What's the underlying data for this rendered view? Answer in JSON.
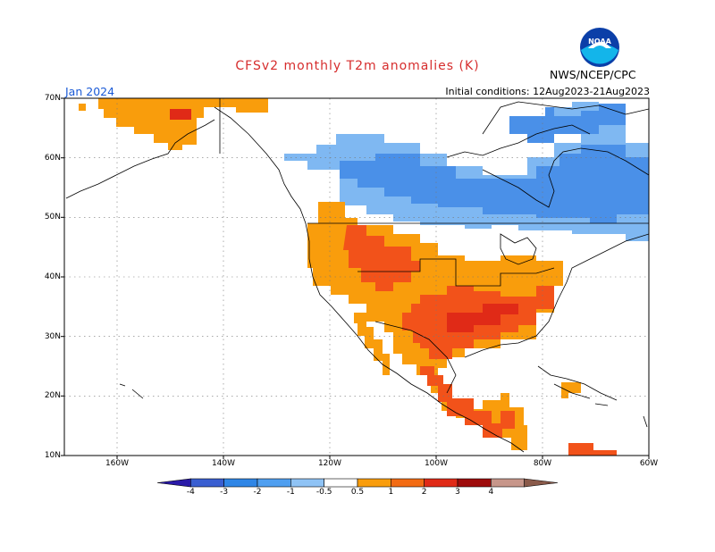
{
  "header": {
    "title": "CFSv2 monthly T2m anomalies (K)",
    "org": "NWS/NCEP/CPC",
    "logo_text": "NOAA",
    "valid_month": "Jan 2024",
    "initial_conditions": "Initial conditions: 12Aug2023-21Aug2023"
  },
  "axes": {
    "lat_labels": [
      "70N",
      "60N",
      "50N",
      "40N",
      "30N",
      "20N",
      "10N"
    ],
    "lon_labels": [
      "160W",
      "140W",
      "120W",
      "100W",
      "80W",
      "60W"
    ]
  },
  "legend": {
    "labels": [
      "-4",
      "-3",
      "-2",
      "-1",
      "-0.5",
      "0.5",
      "1",
      "2",
      "3",
      "4"
    ],
    "colors": [
      "#2a1aa8",
      "#3a5fd1",
      "#2f86e6",
      "#4f9ff0",
      "#8fc3f5",
      "#ffffff",
      "#f99d0c",
      "#f26b13",
      "#e02a17",
      "#9e0b0b",
      "#c7968a",
      "#8a5a4a"
    ]
  },
  "colors": {
    "light_orange": "#f99d0c",
    "orange_red": "#f2521a",
    "red": "#e02a17",
    "light_blue": "#7fb8f2",
    "blue": "#4a90e8",
    "title_red": "#d62d2d",
    "month_blue": "#1a5ad6"
  }
}
